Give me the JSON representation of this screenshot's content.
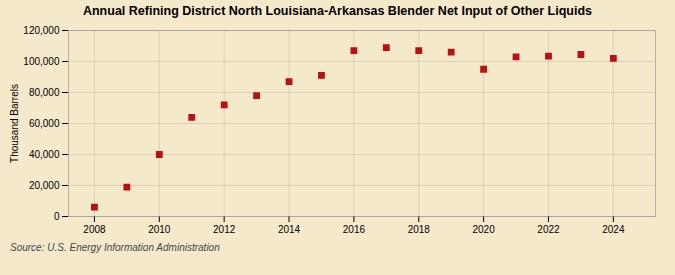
{
  "chart_data": {
    "type": "scatter",
    "title": "Annual Refining District North Louisiana-Arkansas Blender Net Input of Other Liquids",
    "ylabel": "Thousand Barrels",
    "source": "Source: U.S. Energy Information Administration",
    "x": [
      2008,
      2009,
      2010,
      2011,
      2012,
      2013,
      2014,
      2015,
      2016,
      2017,
      2018,
      2019,
      2020,
      2021,
      2022,
      2023,
      2024
    ],
    "values": [
      6000,
      19000,
      40000,
      64000,
      72000,
      78000,
      87000,
      91000,
      107000,
      109000,
      107000,
      106000,
      95000,
      103000,
      103500,
      104500,
      102000
    ],
    "color": "#bb1111",
    "marker": "square",
    "xlim": [
      2007.2,
      2025.3
    ],
    "xticks": [
      2008,
      2010,
      2012,
      2014,
      2016,
      2018,
      2020,
      2022,
      2024
    ],
    "ylim": [
      0,
      120000
    ],
    "yticks": [
      0,
      {
        "value": 20000,
        "label": "20,000"
      },
      {
        "value": 40000,
        "label": "40,000"
      },
      {
        "value": 60000,
        "label": "60,000"
      },
      {
        "value": 80000,
        "label": "80,000"
      },
      {
        "value": 100000,
        "label": "100,000"
      },
      {
        "value": 120000,
        "label": "120,000"
      }
    ],
    "grid": true
  }
}
